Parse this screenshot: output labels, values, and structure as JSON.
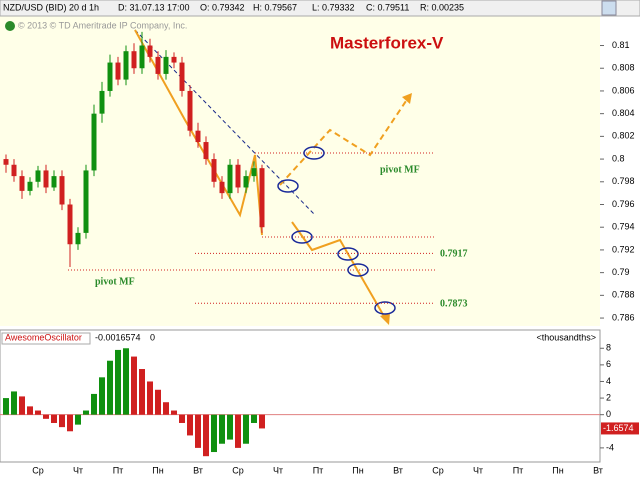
{
  "header": {
    "symbol": "NZD/USD (BID) 20 d 1h",
    "date": "D: 31.07.13 17:00",
    "open": "O: 0.79342",
    "high": "H: 0.79567",
    "low": "L: 0.79332",
    "close": "C: 0.79511",
    "range": "R: 0.00235",
    "copyright": "© 2013 © TD Ameritrade IP Company, Inc."
  },
  "chart_data": [
    {
      "type": "candlestick",
      "title": "Masterforex-V",
      "up_color": "#109010",
      "down_color": "#d02020",
      "open": [
        0.8,
        0.7995,
        0.7985,
        0.7972,
        0.798,
        0.799,
        0.7975,
        0.7985,
        0.796,
        0.7925,
        0.7935,
        0.799,
        0.804,
        0.806,
        0.8085,
        0.807,
        0.8095,
        0.808,
        0.81,
        0.809,
        0.8075,
        0.809,
        0.8085,
        0.806,
        0.8025,
        0.8015,
        0.8,
        0.798,
        0.797,
        0.7995,
        0.7975,
        0.7985,
        0.7992
      ],
      "high": [
        0.8004,
        0.8,
        0.799,
        0.7984,
        0.7994,
        0.7995,
        0.799,
        0.799,
        0.7965,
        0.794,
        0.7995,
        0.8048,
        0.8068,
        0.8092,
        0.809,
        0.81,
        0.8102,
        0.8112,
        0.8106,
        0.8095,
        0.8096,
        0.8094,
        0.809,
        0.8065,
        0.8032,
        0.802,
        0.8005,
        0.7985,
        0.8,
        0.8,
        0.799,
        0.7998,
        0.7995
      ],
      "low": [
        0.7988,
        0.798,
        0.7965,
        0.7968,
        0.7975,
        0.797,
        0.7972,
        0.7955,
        0.7905,
        0.792,
        0.793,
        0.7985,
        0.8032,
        0.8055,
        0.8065,
        0.8065,
        0.8075,
        0.8075,
        0.8085,
        0.807,
        0.807,
        0.808,
        0.8055,
        0.802,
        0.801,
        0.7995,
        0.7975,
        0.7965,
        0.7965,
        0.797,
        0.797,
        0.798,
        0.7935
      ],
      "close": [
        0.7995,
        0.7985,
        0.7972,
        0.798,
        0.799,
        0.7975,
        0.7985,
        0.796,
        0.7925,
        0.7935,
        0.799,
        0.804,
        0.806,
        0.8085,
        0.807,
        0.8095,
        0.808,
        0.81,
        0.809,
        0.8075,
        0.809,
        0.8085,
        0.806,
        0.8025,
        0.8015,
        0.8,
        0.798,
        0.797,
        0.7995,
        0.7975,
        0.7985,
        0.7992,
        0.794
      ],
      "ylim": [
        0.7853,
        0.8126
      ],
      "yticks": [
        0.81,
        0.808,
        0.806,
        0.804,
        0.802,
        0.8,
        0.798,
        0.796,
        0.794,
        0.792,
        0.79,
        0.788,
        0.786
      ],
      "levels": [
        {
          "value": 0.7917,
          "label": "0.7917"
        },
        {
          "value": 0.7873,
          "label": "0.7873"
        }
      ],
      "annotations": [
        "pivot MF",
        "pivot MF"
      ],
      "x_labels": [
        "Ср",
        "Чт",
        "Пт",
        "Пн",
        "Вт",
        "Ср",
        "Чт",
        "Пт",
        "Пн",
        "Вт",
        "Ср",
        "Чт",
        "Пт",
        "Пн",
        "Вт"
      ]
    },
    {
      "type": "bar",
      "title": "AwesomeOscillator",
      "last_label": "-0.0016574",
      "param": "0",
      "unit": "<thousandths>",
      "up_color": "#109010",
      "down_color": "#d02020",
      "values": [
        2.0,
        2.8,
        2.2,
        1.0,
        0.5,
        -0.5,
        -1.0,
        -1.5,
        -2.0,
        -1.2,
        0.5,
        2.5,
        4.5,
        6.5,
        7.8,
        8.0,
        7.0,
        5.5,
        4.0,
        3.0,
        1.5,
        0.5,
        -1.0,
        -2.5,
        -4.0,
        -5.0,
        -4.5,
        -3.5,
        -3.0,
        -4.0,
        -3.5,
        -1.0,
        -1.6574
      ],
      "last_value_label": "-1.6574",
      "ylim": [
        -5.7,
        10.2
      ],
      "yticks": [
        8,
        6,
        4,
        2,
        0,
        -4
      ]
    }
  ]
}
